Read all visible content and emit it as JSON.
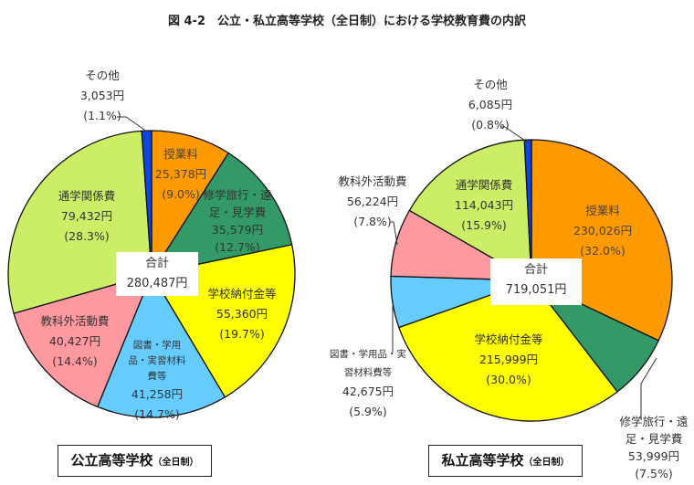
{
  "title": "図 4-2　公立・私立高等学校（全日制）における学校教育費の内訳",
  "chart_data": [
    {
      "type": "pie",
      "title": "公立高等学校",
      "title_note": "（全日制）",
      "total_label": "合計",
      "total_value": "280,487円",
      "start": "12 o'clock, clockwise",
      "slices": [
        {
          "name": "授業料",
          "amount": "25,378円",
          "pct_label": "(9.0%)",
          "value": 9.0,
          "color": "#FF9900"
        },
        {
          "name": "修学旅行・遠足・見学費",
          "amount": "35,579円",
          "pct_label": "(12.7%)",
          "value": 12.7,
          "color": "#339966"
        },
        {
          "name": "学校納付金等",
          "amount": "55,360円",
          "pct_label": "(19.7%)",
          "value": 19.7,
          "color": "#FFFF00"
        },
        {
          "name": "図書・学用品・実習材料費等",
          "amount": "41,258円",
          "pct_label": "(14.7%)",
          "value": 14.7,
          "color": "#66CCFF"
        },
        {
          "name": "教科外活動費",
          "amount": "40,427円",
          "pct_label": "(14.4%)",
          "value": 14.4,
          "color": "#FF99A0"
        },
        {
          "name": "通学関係費",
          "amount": "79,432円",
          "pct_label": "(28.3%)",
          "value": 28.3,
          "color": "#CCEE66"
        },
        {
          "name": "その他",
          "amount": "3,053円",
          "pct_label": "(1.1%)",
          "value": 1.1,
          "color": "#1144DD"
        }
      ]
    },
    {
      "type": "pie",
      "title": "私立高等学校",
      "title_note": "（全日制）",
      "total_label": "合計",
      "total_value": "719,051円",
      "start": "12 o'clock, clockwise",
      "slices": [
        {
          "name": "授業料",
          "amount": "230,026円",
          "pct_label": "(32.0%)",
          "value": 32.0,
          "color": "#FF9900"
        },
        {
          "name": "修学旅行・遠足・見学費",
          "amount": "53,999円",
          "pct_label": "(7.5%)",
          "value": 7.5,
          "color": "#339966"
        },
        {
          "name": "学校納付金等",
          "amount": "215,999円",
          "pct_label": "(30.0%)",
          "value": 30.0,
          "color": "#FFFF00"
        },
        {
          "name": "図書・学用品・実習材料費等",
          "amount": "42,675円",
          "pct_label": "(5.9%)",
          "value": 5.9,
          "color": "#66CCFF"
        },
        {
          "name": "教科外活動費",
          "amount": "56,224円",
          "pct_label": "(7.8%)",
          "value": 7.8,
          "color": "#FF99A0"
        },
        {
          "name": "通学関係費",
          "amount": "114,043円",
          "pct_label": "(15.9%)",
          "value": 15.9,
          "color": "#CCEE66"
        },
        {
          "name": "その他",
          "amount": "6,085円",
          "pct_label": "(0.8%)",
          "value": 0.8,
          "color": "#1144DD"
        }
      ]
    }
  ]
}
